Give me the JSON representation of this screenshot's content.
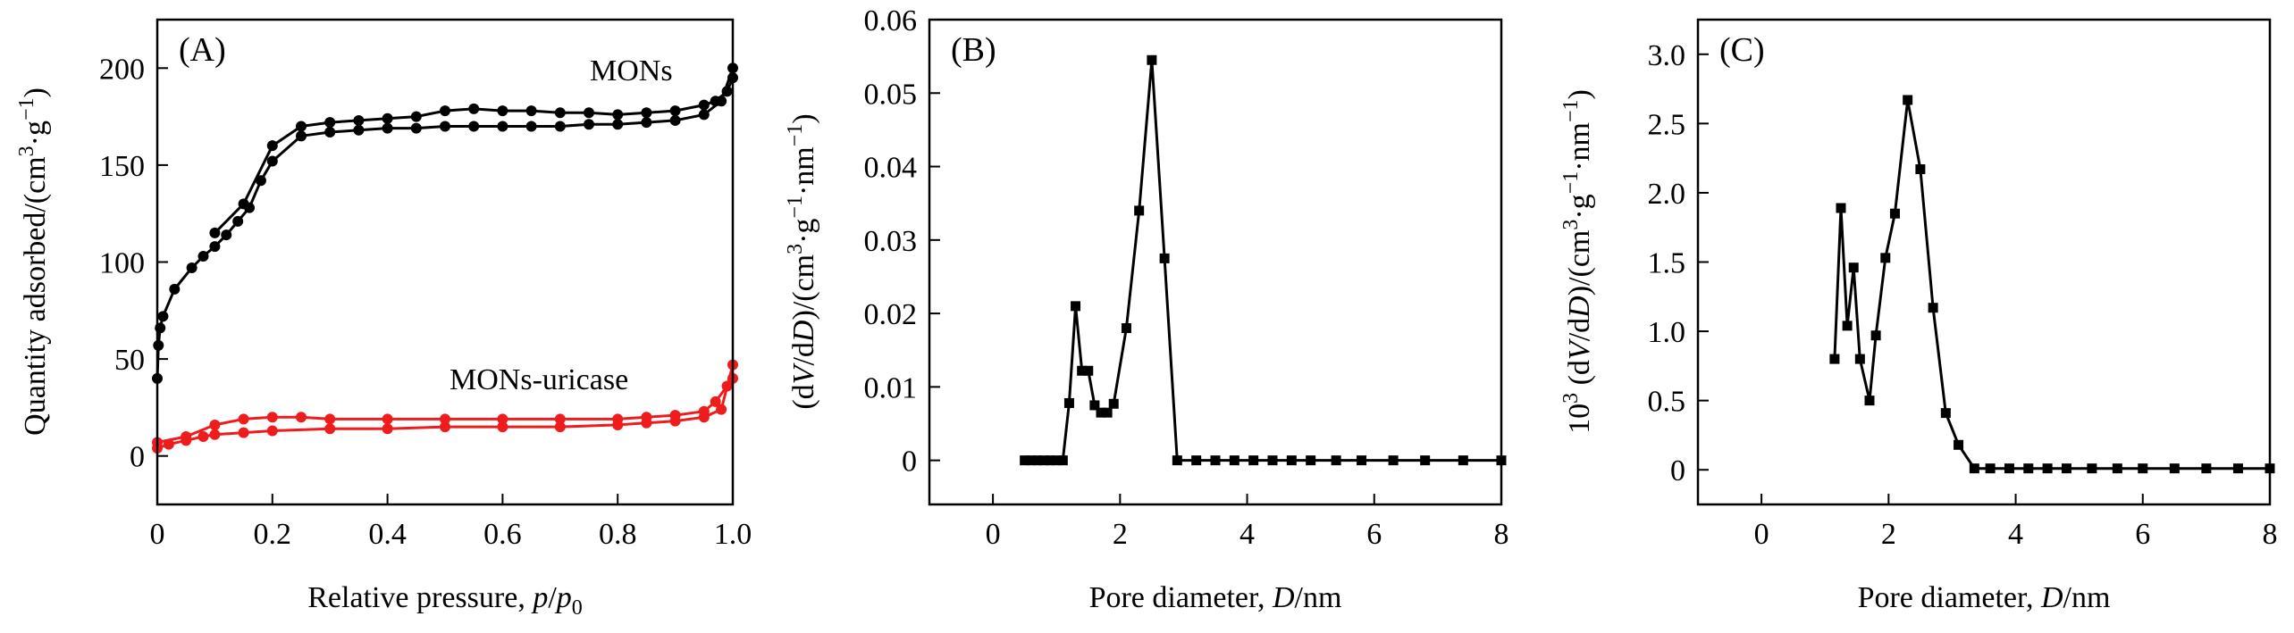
{
  "chart_data": [
    {
      "type": "line",
      "panel_label": "(A)",
      "xlabel_main": "Relative pressure, ",
      "xlabel_var": "p",
      "xlabel_sep": "/",
      "xlabel_sub_var": "p",
      "xlabel_sub": "0",
      "ylabel_main": "Quantity adsorbed/(cm",
      "ylabel_sup1": "3",
      "ylabel_mid": "·g",
      "ylabel_sup2": "−1",
      "ylabel_end": ")",
      "xlim": [
        0,
        1.0
      ],
      "ylim": [
        -25,
        225
      ],
      "xticks": [
        0,
        0.2,
        0.4,
        0.6,
        0.8,
        1.0
      ],
      "xtick_labels": [
        "0",
        "0.2",
        "0.4",
        "0.6",
        "0.8",
        "1.0"
      ],
      "yticks": [
        0,
        50,
        100,
        150,
        200
      ],
      "ytick_labels": [
        "0",
        "50",
        "100",
        "150",
        "200"
      ],
      "series": [
        {
          "name": "MONs",
          "color": "#000000",
          "adsorption": [
            [
              0.0,
              40
            ],
            [
              0.002,
              57
            ],
            [
              0.005,
              66
            ],
            [
              0.01,
              72
            ],
            [
              0.03,
              86
            ],
            [
              0.06,
              97
            ],
            [
              0.08,
              103
            ],
            [
              0.1,
              108
            ],
            [
              0.12,
              114
            ],
            [
              0.14,
              121
            ],
            [
              0.16,
              128
            ],
            [
              0.18,
              142
            ],
            [
              0.2,
              152
            ],
            [
              0.25,
              165
            ],
            [
              0.3,
              167
            ],
            [
              0.35,
              168
            ],
            [
              0.4,
              169
            ],
            [
              0.45,
              169
            ],
            [
              0.5,
              170
            ],
            [
              0.55,
              170
            ],
            [
              0.6,
              170
            ],
            [
              0.65,
              170
            ],
            [
              0.7,
              170
            ],
            [
              0.75,
              171
            ],
            [
              0.8,
              171
            ],
            [
              0.85,
              172
            ],
            [
              0.9,
              173
            ],
            [
              0.95,
              176
            ],
            [
              0.98,
              183
            ],
            [
              1.0,
              200
            ]
          ],
          "desorption": [
            [
              1.0,
              195
            ],
            [
              0.99,
              188
            ],
            [
              0.97,
              183
            ],
            [
              0.95,
              181
            ],
            [
              0.9,
              178
            ],
            [
              0.85,
              177
            ],
            [
              0.8,
              176
            ],
            [
              0.75,
              177
            ],
            [
              0.7,
              177
            ],
            [
              0.65,
              178
            ],
            [
              0.6,
              178
            ],
            [
              0.55,
              179
            ],
            [
              0.5,
              178
            ],
            [
              0.45,
              175
            ],
            [
              0.4,
              174
            ],
            [
              0.35,
              173
            ],
            [
              0.3,
              172
            ],
            [
              0.25,
              170
            ],
            [
              0.2,
              160
            ],
            [
              0.15,
              130
            ],
            [
              0.1,
              115
            ]
          ]
        },
        {
          "name": "MONs-uricase",
          "color": "#ee1c1c",
          "adsorption": [
            [
              0.0,
              4
            ],
            [
              0.02,
              6
            ],
            [
              0.05,
              8
            ],
            [
              0.08,
              10
            ],
            [
              0.1,
              11
            ],
            [
              0.15,
              12
            ],
            [
              0.2,
              13
            ],
            [
              0.3,
              14
            ],
            [
              0.4,
              14
            ],
            [
              0.5,
              15
            ],
            [
              0.6,
              15
            ],
            [
              0.7,
              15
            ],
            [
              0.8,
              16
            ],
            [
              0.85,
              17
            ],
            [
              0.9,
              18
            ],
            [
              0.95,
              20
            ],
            [
              0.98,
              24
            ],
            [
              1.0,
              47
            ]
          ],
          "desorption": [
            [
              1.0,
              40
            ],
            [
              0.99,
              36
            ],
            [
              0.97,
              28
            ],
            [
              0.95,
              23
            ],
            [
              0.9,
              21
            ],
            [
              0.85,
              20
            ],
            [
              0.8,
              19
            ],
            [
              0.7,
              19
            ],
            [
              0.6,
              19
            ],
            [
              0.5,
              19
            ],
            [
              0.4,
              19
            ],
            [
              0.3,
              19
            ],
            [
              0.25,
              20
            ],
            [
              0.2,
              20
            ],
            [
              0.15,
              19
            ],
            [
              0.1,
              16
            ],
            [
              0.05,
              10
            ],
            [
              0.0,
              7
            ]
          ]
        }
      ]
    },
    {
      "type": "line",
      "panel_label": "(B)",
      "xlabel_main": "Pore diameter, ",
      "xlabel_var": "D",
      "xlabel_unit": "/nm",
      "ylabel_pre": "(d",
      "ylabel_v": "V",
      "ylabel_mid": "/d",
      "ylabel_d": "D",
      "ylabel_post": ")/(cm",
      "ylabel_sup1": "3",
      "ylabel_mid2": "·g",
      "ylabel_sup2": "−1",
      "ylabel_mid3": "·nm",
      "ylabel_sup3": "−1",
      "ylabel_end": ")",
      "xlim": [
        -1,
        8
      ],
      "ylim": [
        -0.006,
        0.06
      ],
      "xticks": [
        0,
        2,
        4,
        6,
        8
      ],
      "xtick_labels": [
        "0",
        "2",
        "4",
        "6",
        "8"
      ],
      "yticks": [
        0,
        0.01,
        0.02,
        0.03,
        0.04,
        0.05,
        0.06
      ],
      "ytick_labels": [
        "0",
        "0.01",
        "0.02",
        "0.03",
        "0.04",
        "0.05",
        "0.06"
      ],
      "series": [
        {
          "color": "#000000",
          "points": [
            [
              0.5,
              0
            ],
            [
              0.6,
              0
            ],
            [
              0.7,
              0
            ],
            [
              0.8,
              0
            ],
            [
              0.9,
              0
            ],
            [
              1.0,
              0
            ],
            [
              1.1,
              0
            ],
            [
              1.2,
              0.0078
            ],
            [
              1.3,
              0.021
            ],
            [
              1.4,
              0.0122
            ],
            [
              1.5,
              0.0122
            ],
            [
              1.6,
              0.0075
            ],
            [
              1.7,
              0.0065
            ],
            [
              1.8,
              0.0065
            ],
            [
              1.9,
              0.0077
            ],
            [
              2.1,
              0.018
            ],
            [
              2.3,
              0.034
            ],
            [
              2.5,
              0.0545
            ],
            [
              2.7,
              0.0275
            ],
            [
              2.9,
              0
            ],
            [
              3.2,
              0
            ],
            [
              3.5,
              0
            ],
            [
              3.8,
              0
            ],
            [
              4.1,
              0
            ],
            [
              4.4,
              0
            ],
            [
              4.7,
              0
            ],
            [
              5.0,
              0
            ],
            [
              5.4,
              0
            ],
            [
              5.8,
              0
            ],
            [
              6.3,
              0
            ],
            [
              6.8,
              0
            ],
            [
              7.4,
              0
            ],
            [
              8.0,
              0
            ]
          ]
        }
      ]
    },
    {
      "type": "line",
      "panel_label": "(C)",
      "xlabel_main": "Pore diameter, ",
      "xlabel_var": "D",
      "xlabel_unit": "/nm",
      "ylabel_pre": "10",
      "ylabel_sup0": "3",
      "ylabel_open": " (d",
      "ylabel_v": "V",
      "ylabel_mid": "/d",
      "ylabel_d": "D",
      "ylabel_post": ")/(cm",
      "ylabel_sup1": "3",
      "ylabel_mid2": "·g",
      "ylabel_sup2": "−1",
      "ylabel_mid3": "·nm",
      "ylabel_sup3": "−1",
      "ylabel_end": ")",
      "xlim": [
        -1,
        8
      ],
      "ylim": [
        -0.25,
        3.25
      ],
      "xticks": [
        0,
        2,
        4,
        6,
        8
      ],
      "xtick_labels": [
        "0",
        "2",
        "4",
        "6",
        "8"
      ],
      "yticks": [
        0,
        0.5,
        1.0,
        1.5,
        2.0,
        2.5,
        3.0
      ],
      "ytick_labels": [
        "0",
        "0.5",
        "1.0",
        "1.5",
        "2.0",
        "2.5",
        "3.0"
      ],
      "series": [
        {
          "color": "#000000",
          "points": [
            [
              1.15,
              0.8
            ],
            [
              1.25,
              1.89
            ],
            [
              1.35,
              1.04
            ],
            [
              1.45,
              1.46
            ],
            [
              1.55,
              0.8
            ],
            [
              1.7,
              0.5
            ],
            [
              1.8,
              0.97
            ],
            [
              1.95,
              1.53
            ],
            [
              2.1,
              1.85
            ],
            [
              2.3,
              2.67
            ],
            [
              2.5,
              2.17
            ],
            [
              2.7,
              1.17
            ],
            [
              2.9,
              0.41
            ],
            [
              3.1,
              0.18
            ],
            [
              3.35,
              0.01
            ],
            [
              3.6,
              0.01
            ],
            [
              3.9,
              0.01
            ],
            [
              4.2,
              0.01
            ],
            [
              4.5,
              0.01
            ],
            [
              4.8,
              0.01
            ],
            [
              5.2,
              0.01
            ],
            [
              5.6,
              0.01
            ],
            [
              6.0,
              0.01
            ],
            [
              6.5,
              0.01
            ],
            [
              7.0,
              0.01
            ],
            [
              7.5,
              0.01
            ],
            [
              8.0,
              0.01
            ]
          ]
        }
      ]
    }
  ]
}
